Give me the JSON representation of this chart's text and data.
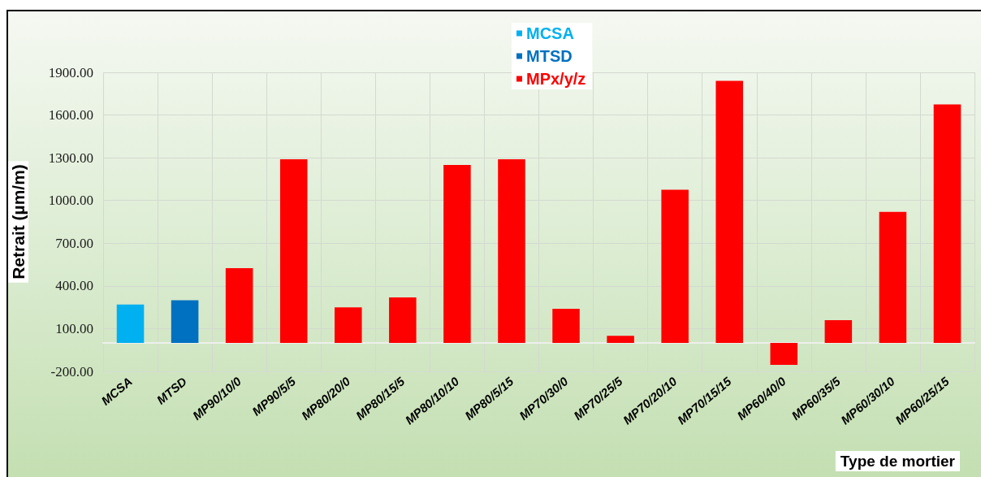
{
  "chart_data": {
    "type": "bar",
    "ylabel": "Retrait (µm/m)",
    "xlabel": "Type de mortier",
    "categories": [
      "MCSA",
      "MTSD",
      "MP90/10/0",
      "MP90/5/5",
      "MP80/20/0",
      "MP80/15/5",
      "MP80/10/10",
      "MP80/5/15",
      "MP70/30/0",
      "MP70/25/5",
      "MP70/20/10",
      "MP70/15/15",
      "MP60/40/0",
      "MP60/35/5",
      "MP60/30/10",
      "MP60/25/15"
    ],
    "series": [
      {
        "name": "MCSA",
        "color": "#00b0f0",
        "values": [
          270,
          null,
          null,
          null,
          null,
          null,
          null,
          null,
          null,
          null,
          null,
          null,
          null,
          null,
          null,
          null
        ]
      },
      {
        "name": "MTSD",
        "color": "#0070c0",
        "values": [
          null,
          300,
          null,
          null,
          null,
          null,
          null,
          null,
          null,
          null,
          null,
          null,
          null,
          null,
          null,
          null
        ]
      },
      {
        "name": "MPx/y/z",
        "color": "#ff0000",
        "values": [
          null,
          null,
          525,
          1290,
          250,
          320,
          1250,
          1290,
          240,
          50,
          1075,
          1840,
          -155,
          160,
          920,
          1675
        ]
      }
    ],
    "ylim": [
      -200,
      1900
    ],
    "yticks": [
      {
        "value": -200,
        "label": "-200.00"
      },
      {
        "value": 100,
        "label": "100.00"
      },
      {
        "value": 400,
        "label": "400.00"
      },
      {
        "value": 700,
        "label": "700.00"
      },
      {
        "value": 1000,
        "label": "1000.00"
      },
      {
        "value": 1300,
        "label": "1300.00"
      },
      {
        "value": 1600,
        "label": "1600.00"
      },
      {
        "value": 1900,
        "label": "1900.00"
      }
    ],
    "grid": true,
    "legend": "top"
  }
}
